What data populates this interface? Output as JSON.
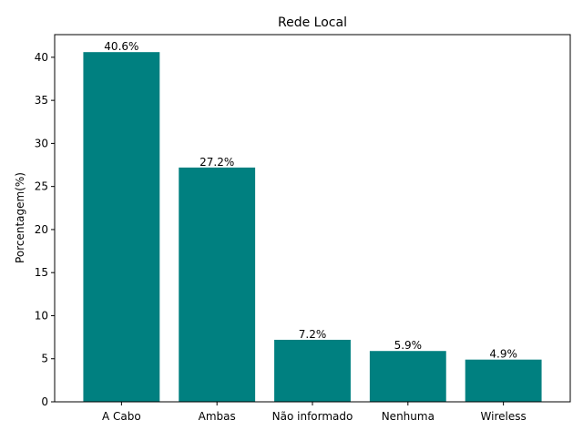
{
  "chart_data": {
    "type": "bar",
    "title": "Rede Local",
    "xlabel": "",
    "ylabel": "Porcentagem(%)",
    "categories": [
      "A Cabo",
      "Ambas",
      "Não informado",
      "Nenhuma",
      "Wireless"
    ],
    "values": [
      40.6,
      27.2,
      7.2,
      5.9,
      4.9
    ],
    "data_labels": [
      "40.6%",
      "27.2%",
      "7.2%",
      "5.9%",
      "4.9%"
    ],
    "ylim": [
      0,
      42.63
    ],
    "yticks": [
      0,
      5,
      10,
      15,
      20,
      25,
      30,
      35,
      40
    ],
    "bar_color": "#008080",
    "grid": false,
    "legend": "none"
  }
}
